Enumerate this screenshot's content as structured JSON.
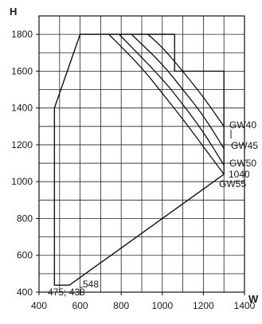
{
  "chart_data": {
    "type": "line",
    "xlabel": "W",
    "ylabel": "H",
    "xlim": [
      400,
      1400
    ],
    "ylim": [
      400,
      1900
    ],
    "xticks": [
      400,
      600,
      800,
      1000,
      1200,
      1400
    ],
    "yticks": [
      400,
      600,
      800,
      1000,
      1200,
      1400,
      1600,
      1800
    ],
    "grid": true,
    "envelope": {
      "points": [
        [
          475,
          438
        ],
        [
          548,
          438
        ],
        [
          1300,
          1040
        ],
        [
          1300,
          1600
        ],
        [
          1060,
          1600
        ],
        [
          1060,
          1800
        ],
        [
          600,
          1800
        ],
        [
          475,
          1400
        ]
      ]
    },
    "series": [
      {
        "name": "GW40",
        "points": [
          [
            930,
            1800
          ],
          [
            1000,
            1730
          ],
          [
            1100,
            1600
          ],
          [
            1200,
            1460
          ],
          [
            1300,
            1300
          ]
        ]
      },
      {
        "name": "GW45",
        "points": [
          [
            850,
            1800
          ],
          [
            1000,
            1640
          ],
          [
            1100,
            1500
          ],
          [
            1200,
            1360
          ],
          [
            1300,
            1180
          ]
        ]
      },
      {
        "name": "GW50",
        "points": [
          [
            790,
            1800
          ],
          [
            1000,
            1560
          ],
          [
            1100,
            1420
          ],
          [
            1200,
            1270
          ],
          [
            1300,
            1090
          ]
        ]
      },
      {
        "name": "GW55",
        "points": [
          [
            740,
            1800
          ],
          [
            900,
            1620
          ],
          [
            1000,
            1480
          ],
          [
            1100,
            1340
          ],
          [
            1200,
            1190
          ],
          [
            1300,
            1040
          ]
        ]
      }
    ],
    "annotations": {
      "corner_left": "475; 438",
      "corner_right": "548",
      "right_value": "1040"
    }
  }
}
